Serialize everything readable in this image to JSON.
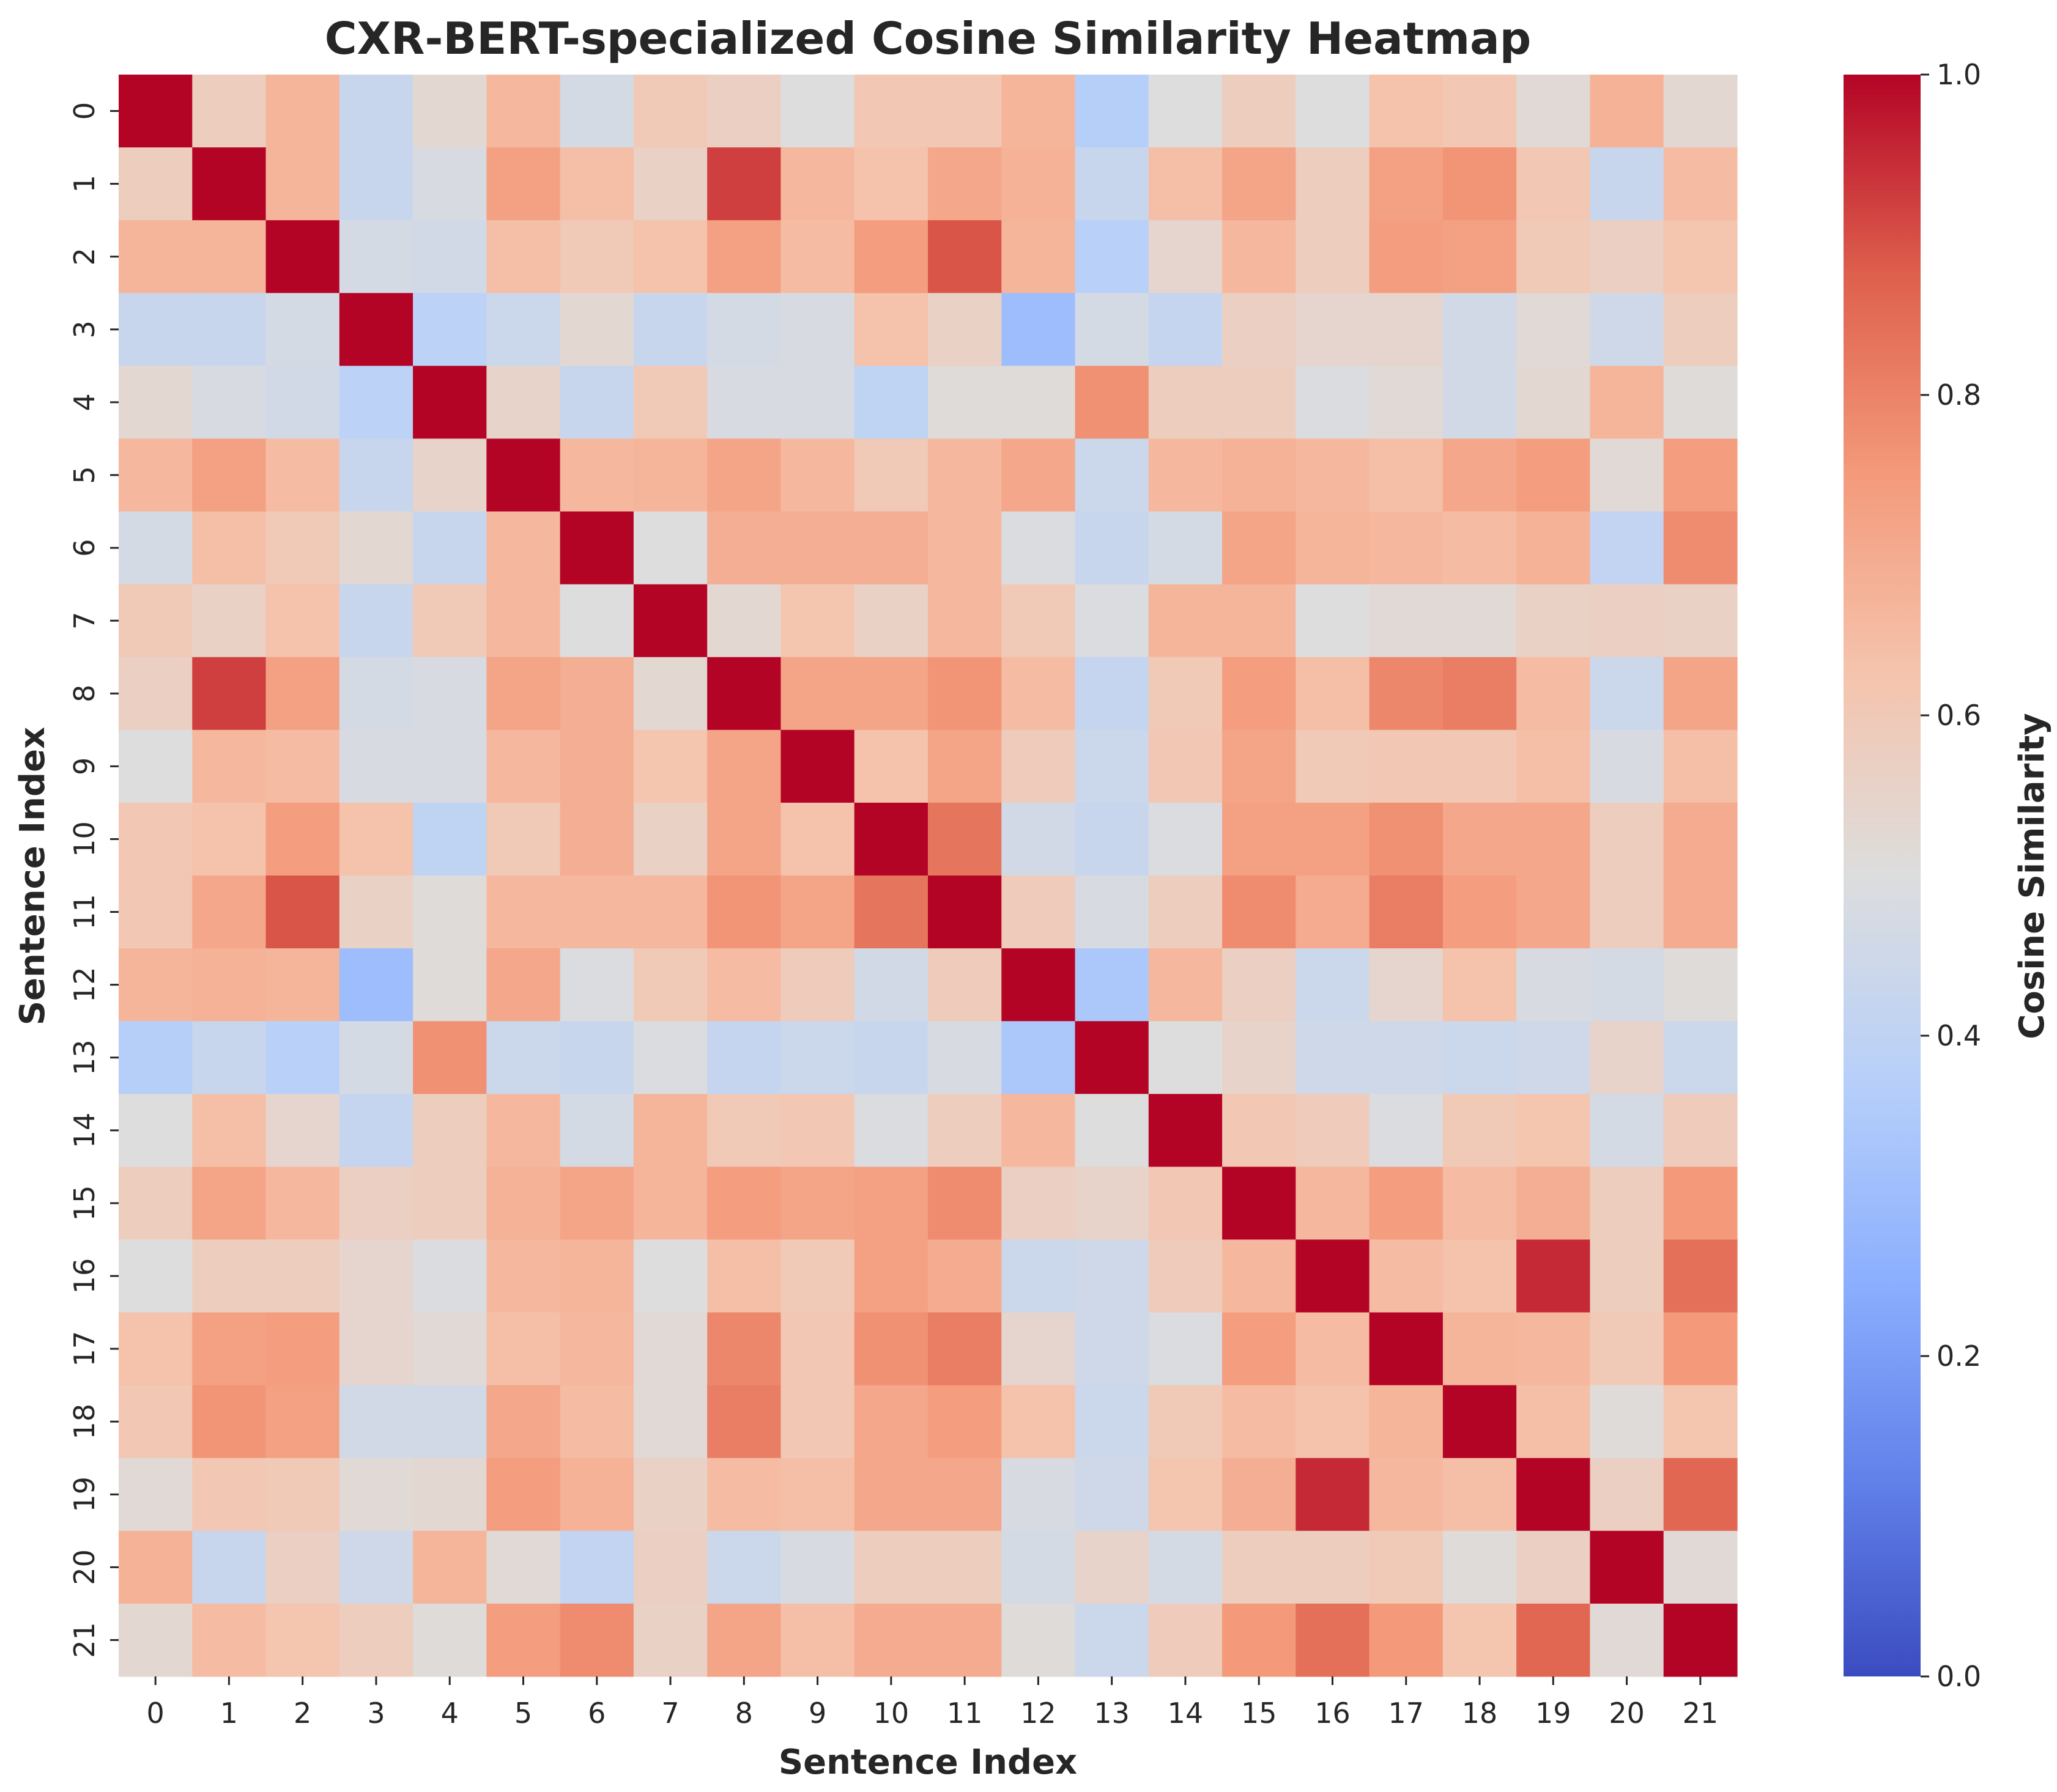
{
  "chart_data": {
    "type": "heatmap",
    "title": "CXR-BERT-specialized  Cosine Similarity Heatmap",
    "xlabel": "Sentence Index",
    "ylabel": "Sentence Index",
    "x_categories": [
      "0",
      "1",
      "2",
      "3",
      "4",
      "5",
      "6",
      "7",
      "8",
      "9",
      "10",
      "11",
      "12",
      "13",
      "14",
      "15",
      "16",
      "17",
      "18",
      "19",
      "20",
      "21"
    ],
    "y_categories": [
      "0",
      "1",
      "2",
      "3",
      "4",
      "5",
      "6",
      "7",
      "8",
      "9",
      "10",
      "11",
      "12",
      "13",
      "14",
      "15",
      "16",
      "17",
      "18",
      "19",
      "20",
      "21"
    ],
    "colorbar": {
      "label": "Cosine Similarity",
      "range": [
        0.0,
        1.0
      ],
      "ticks": [
        "0.0",
        "0.2",
        "0.4",
        "0.6",
        "0.8",
        "1.0"
      ],
      "colormap": "coolwarm"
    },
    "values": [
      [
        1.0,
        0.58,
        0.67,
        0.43,
        0.53,
        0.66,
        0.47,
        0.6,
        0.57,
        0.5,
        0.61,
        0.61,
        0.67,
        0.37,
        0.5,
        0.58,
        0.5,
        0.63,
        0.61,
        0.52,
        0.68,
        0.53
      ],
      [
        0.58,
        1.0,
        0.67,
        0.43,
        0.48,
        0.73,
        0.64,
        0.56,
        0.92,
        0.66,
        0.63,
        0.71,
        0.68,
        0.43,
        0.64,
        0.72,
        0.58,
        0.73,
        0.76,
        0.61,
        0.43,
        0.65
      ],
      [
        0.67,
        0.67,
        1.0,
        0.47,
        0.46,
        0.64,
        0.6,
        0.63,
        0.73,
        0.65,
        0.74,
        0.89,
        0.67,
        0.38,
        0.54,
        0.66,
        0.58,
        0.74,
        0.73,
        0.6,
        0.57,
        0.62
      ],
      [
        0.43,
        0.43,
        0.47,
        1.0,
        0.39,
        0.44,
        0.53,
        0.43,
        0.47,
        0.48,
        0.63,
        0.56,
        0.3,
        0.47,
        0.42,
        0.57,
        0.54,
        0.54,
        0.46,
        0.52,
        0.45,
        0.58
      ],
      [
        0.53,
        0.48,
        0.46,
        0.39,
        1.0,
        0.55,
        0.43,
        0.6,
        0.48,
        0.48,
        0.4,
        0.51,
        0.51,
        0.77,
        0.58,
        0.58,
        0.49,
        0.52,
        0.46,
        0.53,
        0.67,
        0.51
      ],
      [
        0.66,
        0.73,
        0.65,
        0.43,
        0.55,
        1.0,
        0.66,
        0.67,
        0.72,
        0.66,
        0.6,
        0.66,
        0.71,
        0.44,
        0.66,
        0.68,
        0.66,
        0.64,
        0.71,
        0.74,
        0.52,
        0.74
      ],
      [
        0.47,
        0.64,
        0.6,
        0.53,
        0.43,
        0.66,
        1.0,
        0.5,
        0.69,
        0.69,
        0.69,
        0.66,
        0.49,
        0.43,
        0.47,
        0.72,
        0.67,
        0.66,
        0.65,
        0.68,
        0.41,
        0.78
      ],
      [
        0.6,
        0.56,
        0.63,
        0.43,
        0.6,
        0.66,
        0.5,
        1.0,
        0.53,
        0.62,
        0.56,
        0.66,
        0.6,
        0.49,
        0.67,
        0.67,
        0.5,
        0.52,
        0.52,
        0.56,
        0.57,
        0.56
      ],
      [
        0.57,
        0.92,
        0.73,
        0.47,
        0.48,
        0.72,
        0.69,
        0.53,
        1.0,
        0.72,
        0.72,
        0.76,
        0.65,
        0.42,
        0.6,
        0.74,
        0.64,
        0.79,
        0.81,
        0.65,
        0.44,
        0.72
      ],
      [
        0.5,
        0.66,
        0.65,
        0.48,
        0.48,
        0.66,
        0.69,
        0.62,
        0.72,
        1.0,
        0.63,
        0.72,
        0.59,
        0.44,
        0.61,
        0.72,
        0.6,
        0.61,
        0.61,
        0.64,
        0.48,
        0.64
      ],
      [
        0.61,
        0.63,
        0.74,
        0.63,
        0.4,
        0.6,
        0.69,
        0.56,
        0.72,
        0.63,
        1.0,
        0.83,
        0.46,
        0.43,
        0.49,
        0.73,
        0.73,
        0.77,
        0.71,
        0.71,
        0.58,
        0.7
      ],
      [
        0.61,
        0.71,
        0.89,
        0.56,
        0.51,
        0.66,
        0.66,
        0.66,
        0.76,
        0.72,
        0.83,
        1.0,
        0.59,
        0.48,
        0.58,
        0.78,
        0.7,
        0.81,
        0.74,
        0.71,
        0.58,
        0.7
      ],
      [
        0.67,
        0.68,
        0.67,
        0.3,
        0.51,
        0.71,
        0.49,
        0.6,
        0.65,
        0.59,
        0.46,
        0.59,
        1.0,
        0.34,
        0.66,
        0.57,
        0.44,
        0.54,
        0.63,
        0.48,
        0.47,
        0.51
      ],
      [
        0.37,
        0.43,
        0.38,
        0.47,
        0.77,
        0.44,
        0.43,
        0.49,
        0.42,
        0.44,
        0.43,
        0.48,
        0.34,
        1.0,
        0.5,
        0.55,
        0.45,
        0.45,
        0.44,
        0.45,
        0.55,
        0.44
      ],
      [
        0.5,
        0.64,
        0.54,
        0.42,
        0.58,
        0.66,
        0.47,
        0.67,
        0.6,
        0.61,
        0.49,
        0.58,
        0.66,
        0.5,
        1.0,
        0.61,
        0.59,
        0.49,
        0.6,
        0.62,
        0.47,
        0.59
      ],
      [
        0.58,
        0.72,
        0.66,
        0.57,
        0.58,
        0.68,
        0.72,
        0.67,
        0.74,
        0.72,
        0.73,
        0.78,
        0.57,
        0.55,
        0.61,
        1.0,
        0.66,
        0.74,
        0.65,
        0.69,
        0.58,
        0.75
      ],
      [
        0.5,
        0.58,
        0.58,
        0.54,
        0.49,
        0.66,
        0.67,
        0.5,
        0.64,
        0.6,
        0.73,
        0.7,
        0.44,
        0.45,
        0.59,
        0.66,
        1.0,
        0.65,
        0.63,
        0.95,
        0.58,
        0.84
      ],
      [
        0.63,
        0.73,
        0.74,
        0.54,
        0.52,
        0.64,
        0.66,
        0.52,
        0.79,
        0.61,
        0.77,
        0.81,
        0.54,
        0.45,
        0.49,
        0.74,
        0.65,
        1.0,
        0.67,
        0.66,
        0.6,
        0.75
      ],
      [
        0.61,
        0.76,
        0.73,
        0.46,
        0.46,
        0.71,
        0.65,
        0.52,
        0.81,
        0.61,
        0.71,
        0.74,
        0.63,
        0.44,
        0.6,
        0.65,
        0.63,
        0.67,
        1.0,
        0.64,
        0.51,
        0.62
      ],
      [
        0.52,
        0.61,
        0.6,
        0.52,
        0.53,
        0.74,
        0.68,
        0.56,
        0.65,
        0.64,
        0.71,
        0.71,
        0.48,
        0.45,
        0.62,
        0.69,
        0.95,
        0.66,
        0.64,
        1.0,
        0.57,
        0.86
      ],
      [
        0.68,
        0.43,
        0.57,
        0.45,
        0.67,
        0.52,
        0.41,
        0.57,
        0.44,
        0.48,
        0.58,
        0.58,
        0.47,
        0.55,
        0.47,
        0.58,
        0.58,
        0.6,
        0.51,
        0.57,
        1.0,
        0.52
      ],
      [
        0.53,
        0.65,
        0.62,
        0.58,
        0.51,
        0.74,
        0.78,
        0.56,
        0.72,
        0.64,
        0.7,
        0.7,
        0.51,
        0.44,
        0.59,
        0.75,
        0.84,
        0.75,
        0.62,
        0.86,
        0.52,
        1.0
      ]
    ]
  }
}
